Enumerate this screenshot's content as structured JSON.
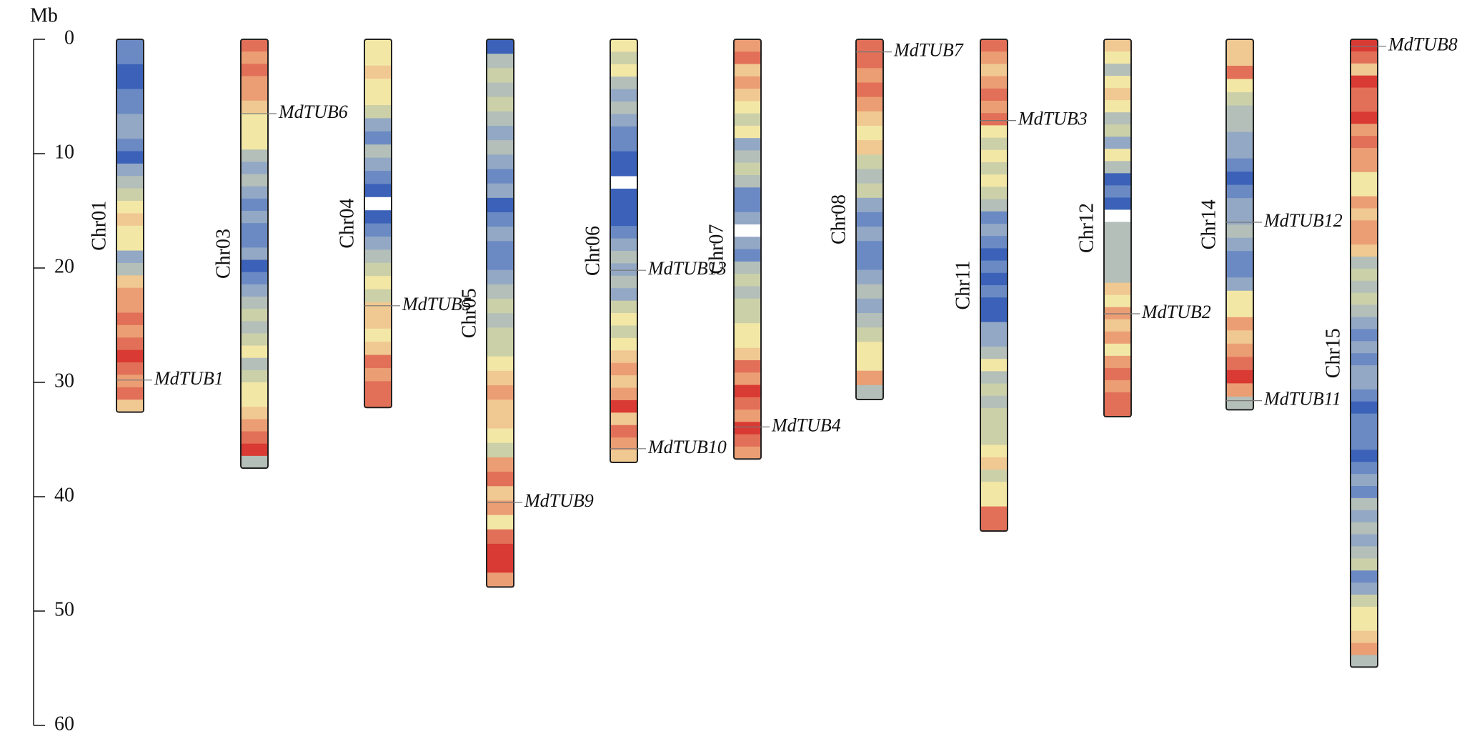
{
  "chart_data": {
    "type": "ideogram",
    "y_label": "Mb",
    "ylim": [
      0,
      60
    ],
    "yticks": [
      0,
      10,
      20,
      30,
      40,
      50,
      60
    ],
    "chromosomes": [
      {
        "name": "Chr01",
        "length": 32.6,
        "bands": [
          "#6b8ac4",
          "#6b8ac4",
          "#3b62b8",
          "#3b62b8",
          "#6b8ac4",
          "#6b8ac4",
          "#93a8c4",
          "#93a8c4",
          "#6b8ac4",
          "#3b62b8",
          "#93a8c4",
          "#b3bfb8",
          "#ccd0a8",
          "#f3e7a6",
          "#f0c892",
          "#f3e7a6",
          "#f3e7a6",
          "#93a8c4",
          "#b3bfb8",
          "#f0c892",
          "#eb9e74",
          "#eb9e74",
          "#e27058",
          "#eb9e74",
          "#e27058",
          "#d93a34",
          "#e27058",
          "#eb9e74",
          "#e27058",
          "#f0c892"
        ],
        "genes": [
          {
            "name": "MdTUB1",
            "position": 29.8
          }
        ]
      },
      {
        "name": "Chr03",
        "length": 37.5,
        "bands": [
          "#e27058",
          "#eb9e74",
          "#e27058",
          "#eb9e74",
          "#eb9e74",
          "#f0c892",
          "#f3e7a6",
          "#f3e7a6",
          "#f3e7a6",
          "#b3bfb8",
          "#93a8c4",
          "#b3bfb8",
          "#93a8c4",
          "#6b8ac4",
          "#93a8c4",
          "#6b8ac4",
          "#6b8ac4",
          "#93a8c4",
          "#3b62b8",
          "#6b8ac4",
          "#93a8c4",
          "#b3bfb8",
          "#ccd0a8",
          "#b3bfb8",
          "#ccd0a8",
          "#f3e7a6",
          "#b3bfb8",
          "#ccd0a8",
          "#f3e7a6",
          "#f3e7a6",
          "#f0c892",
          "#eb9e74",
          "#e27058",
          "#d93a34",
          "#b3bfb8"
        ],
        "genes": [
          {
            "name": "MdTUB6",
            "position": 6.5
          }
        ]
      },
      {
        "name": "Chr04",
        "length": 32.2,
        "bands": [
          "#f3e7a6",
          "#f3e7a6",
          "#f0c892",
          "#f3e7a6",
          "#f3e7a6",
          "#ccd0a8",
          "#93a8c4",
          "#6b8ac4",
          "#b3bfb8",
          "#93a8c4",
          "#6b8ac4",
          "#3b62b8",
          "#ffffff",
          "#3b62b8",
          "#6b8ac4",
          "#93a8c4",
          "#b3bfb8",
          "#ccd0a8",
          "#f3e7a6",
          "#ccd0a8",
          "#f0c892",
          "#f0c892",
          "#f3e7a6",
          "#f0c892",
          "#e27058",
          "#eb9e74",
          "#e27058",
          "#e27058"
        ],
        "genes": [
          {
            "name": "MdTUB5",
            "position": 23.3
          }
        ]
      },
      {
        "name": "Chr05",
        "length": 47.9,
        "bands": [
          "#3b62b8",
          "#b3bfb8",
          "#ccd0a8",
          "#b3bfb8",
          "#ccd0a8",
          "#b3bfb8",
          "#93a8c4",
          "#b3bfb8",
          "#93a8c4",
          "#6b8ac4",
          "#93a8c4",
          "#3b62b8",
          "#6b8ac4",
          "#93a8c4",
          "#6b8ac4",
          "#6b8ac4",
          "#93a8c4",
          "#b3bfb8",
          "#ccd0a8",
          "#b3bfb8",
          "#ccd0a8",
          "#ccd0a8",
          "#f3e7a6",
          "#f0c892",
          "#eb9e74",
          "#f0c892",
          "#f0c892",
          "#f3e7a6",
          "#ccd0a8",
          "#eb9e74",
          "#e27058",
          "#f0c892",
          "#eb9e74",
          "#f3e7a6",
          "#e27058",
          "#d93a34",
          "#d93a34",
          "#eb9e74"
        ],
        "genes": [
          {
            "name": "MdTUB9",
            "position": 40.5
          }
        ]
      },
      {
        "name": "Chr06",
        "length": 37.0,
        "bands": [
          "#f3e7a6",
          "#ccd0a8",
          "#f3e7a6",
          "#b3bfb8",
          "#93a8c4",
          "#b3bfb8",
          "#93a8c4",
          "#6b8ac4",
          "#6b8ac4",
          "#3b62b8",
          "#3b62b8",
          "#ffffff",
          "#3b62b8",
          "#3b62b8",
          "#3b62b8",
          "#6b8ac4",
          "#93a8c4",
          "#b3bfb8",
          "#93a8c4",
          "#b3bfb8",
          "#93a8c4",
          "#ccd0a8",
          "#f3e7a6",
          "#ccd0a8",
          "#f3e7a6",
          "#f0c892",
          "#eb9e74",
          "#f0c892",
          "#eb9e74",
          "#d93a34",
          "#f0c892",
          "#e27058",
          "#eb9e74",
          "#f0c892"
        ],
        "genes": [
          {
            "name": "MdTUB13",
            "position": 20.2
          },
          {
            "name": "MdTUB10",
            "position": 35.8
          }
        ]
      },
      {
        "name": "Chr07",
        "length": 36.7,
        "bands": [
          "#eb9e74",
          "#e27058",
          "#f0c892",
          "#eb9e74",
          "#f0c892",
          "#f3e7a6",
          "#ccd0a8",
          "#f3e7a6",
          "#93a8c4",
          "#b3bfb8",
          "#ccd0a8",
          "#b3bfb8",
          "#6b8ac4",
          "#6b8ac4",
          "#93a8c4",
          "#ffffff",
          "#93a8c4",
          "#6b8ac4",
          "#b3bfb8",
          "#ccd0a8",
          "#b3bfb8",
          "#ccd0a8",
          "#ccd0a8",
          "#f3e7a6",
          "#f3e7a6",
          "#f0c892",
          "#e27058",
          "#eb9e74",
          "#d93a34",
          "#e27058",
          "#eb9e74",
          "#d93a34",
          "#e27058",
          "#eb9e74"
        ],
        "genes": [
          {
            "name": "MdTUB4",
            "position": 33.9
          }
        ]
      },
      {
        "name": "Chr08",
        "length": 31.5,
        "bands": [
          "#e27058",
          "#e27058",
          "#eb9e74",
          "#e27058",
          "#eb9e74",
          "#f0c892",
          "#f3e7a6",
          "#f0c892",
          "#ccd0a8",
          "#b3bfb8",
          "#ccd0a8",
          "#93a8c4",
          "#6b8ac4",
          "#93a8c4",
          "#6b8ac4",
          "#6b8ac4",
          "#93a8c4",
          "#b3bfb8",
          "#93a8c4",
          "#b3bfb8",
          "#ccd0a8",
          "#f3e7a6",
          "#f3e7a6",
          "#eb9e74",
          "#b3bfb8"
        ],
        "genes": [
          {
            "name": "MdTUB7",
            "position": 1.1
          }
        ]
      },
      {
        "name": "Chr11",
        "length": 43.0,
        "bands": [
          "#e27058",
          "#eb9e74",
          "#f0c892",
          "#eb9e74",
          "#e27058",
          "#eb9e74",
          "#e27058",
          "#f3e7a6",
          "#ccd0a8",
          "#f3e7a6",
          "#ccd0a8",
          "#f3e7a6",
          "#ccd0a8",
          "#b3bfb8",
          "#6b8ac4",
          "#93a8c4",
          "#6b8ac4",
          "#3b62b8",
          "#6b8ac4",
          "#3b62b8",
          "#6b8ac4",
          "#3b62b8",
          "#3b62b8",
          "#93a8c4",
          "#93a8c4",
          "#b3bfb8",
          "#f3e7a6",
          "#b3bfb8",
          "#ccd0a8",
          "#b3bfb8",
          "#ccd0a8",
          "#ccd0a8",
          "#ccd0a8",
          "#f3e7a6",
          "#f0c892",
          "#ccd0a8",
          "#f3e7a6",
          "#f3e7a6",
          "#e27058",
          "#e27058"
        ],
        "genes": [
          {
            "name": "MdTUB3",
            "position": 7.1
          }
        ]
      },
      {
        "name": "Chr12",
        "length": 33.0,
        "bands": [
          "#f0c892",
          "#f3e7a6",
          "#b3bfb8",
          "#f3e7a6",
          "#f0c892",
          "#f3e7a6",
          "#b3bfb8",
          "#ccd0a8",
          "#93a8c4",
          "#f3e7a6",
          "#b3bfb8",
          "#3b62b8",
          "#6b8ac4",
          "#3b62b8",
          "#ffffff",
          "#b3bfb8",
          "#b3bfb8",
          "#b3bfb8",
          "#b3bfb8",
          "#b3bfb8",
          "#f0c892",
          "#f3e7a6",
          "#eb9e74",
          "#f0c892",
          "#eb9e74",
          "#f3e7a6",
          "#eb9e74",
          "#e27058",
          "#eb9e74",
          "#e27058",
          "#e27058"
        ],
        "genes": [
          {
            "name": "MdTUB2",
            "position": 24.0
          }
        ]
      },
      {
        "name": "Chr14",
        "length": 32.4,
        "bands": [
          "#f0c892",
          "#f0c892",
          "#e27058",
          "#f3e7a6",
          "#ccd0a8",
          "#b3bfb8",
          "#b3bfb8",
          "#93a8c4",
          "#93a8c4",
          "#6b8ac4",
          "#3b62b8",
          "#6b8ac4",
          "#93a8c4",
          "#93a8c4",
          "#b3bfb8",
          "#93a8c4",
          "#6b8ac4",
          "#6b8ac4",
          "#93a8c4",
          "#f3e7a6",
          "#f3e7a6",
          "#eb9e74",
          "#f0c892",
          "#eb9e74",
          "#e27058",
          "#d93a34",
          "#eb9e74",
          "#b3bfb8"
        ],
        "genes": [
          {
            "name": "MdTUB12",
            "position": 16.0
          },
          {
            "name": "MdTUB11",
            "position": 31.6
          }
        ]
      },
      {
        "name": "Chr15",
        "length": 54.9,
        "bands": [
          "#d93a34",
          "#e27058",
          "#f0c892",
          "#d93a34",
          "#e27058",
          "#e27058",
          "#d93a34",
          "#eb9e74",
          "#e27058",
          "#eb9e74",
          "#eb9e74",
          "#f3e7a6",
          "#f3e7a6",
          "#eb9e74",
          "#f0c892",
          "#eb9e74",
          "#eb9e74",
          "#f0c892",
          "#b3bfb8",
          "#ccd0a8",
          "#b3bfb8",
          "#ccd0a8",
          "#b3bfb8",
          "#93a8c4",
          "#6b8ac4",
          "#93a8c4",
          "#6b8ac4",
          "#93a8c4",
          "#93a8c4",
          "#6b8ac4",
          "#3b62b8",
          "#6b8ac4",
          "#6b8ac4",
          "#6b8ac4",
          "#3b62b8",
          "#6b8ac4",
          "#93a8c4",
          "#6b8ac4",
          "#b3bfb8",
          "#93a8c4",
          "#b3bfb8",
          "#93a8c4",
          "#b3bfb8",
          "#ccd0a8",
          "#6b8ac4",
          "#93a8c4",
          "#ccd0a8",
          "#f3e7a6",
          "#f3e7a6",
          "#f0c892",
          "#eb9e74",
          "#b3bfb8"
        ],
        "genes": [
          {
            "name": "MdTUB8",
            "position": 0.6
          }
        ]
      }
    ]
  }
}
